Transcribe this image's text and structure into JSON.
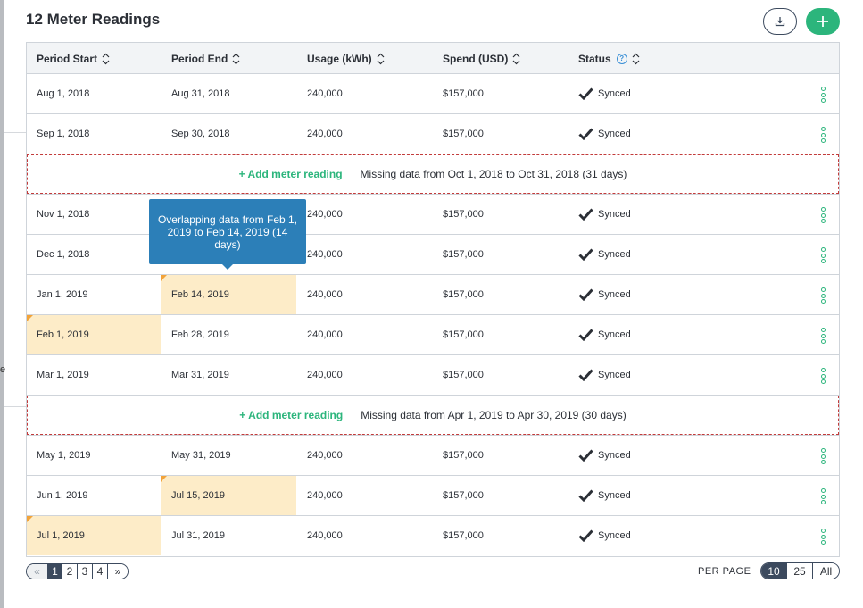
{
  "title": "12 Meter Readings",
  "header": {
    "actions": {
      "download_icon": "download-icon",
      "add_icon": "plus-icon"
    }
  },
  "columns": [
    {
      "label": "Period Start",
      "sortable": true
    },
    {
      "label": "Period End",
      "sortable": true
    },
    {
      "label": "Usage (kWh)",
      "sortable": true
    },
    {
      "label": "Spend (USD)",
      "sortable": true
    },
    {
      "label": "Status",
      "sortable": true,
      "help": "?"
    }
  ],
  "rows": [
    {
      "type": "reading",
      "start": "Aug 1, 2018",
      "end": "Aug 31, 2018",
      "usage": "240,000",
      "spend": "$157,000",
      "status": "Synced",
      "highlight_start": false,
      "highlight_end": false
    },
    {
      "type": "reading",
      "start": "Sep 1, 2018",
      "end": "Sep 30, 2018",
      "usage": "240,000",
      "spend": "$157,000",
      "status": "Synced",
      "highlight_start": false,
      "highlight_end": false
    },
    {
      "type": "missing",
      "link": "+ Add meter reading",
      "message": "Missing data from Oct 1, 2018 to Oct 31, 2018 (31 days)"
    },
    {
      "type": "reading",
      "start": "Nov 1, 2018",
      "end": "",
      "usage": "240,000",
      "spend": "$157,000",
      "status": "Synced",
      "highlight_start": false,
      "highlight_end": false
    },
    {
      "type": "reading",
      "start": "Dec 1, 2018",
      "end": "",
      "usage": "240,000",
      "spend": "$157,000",
      "status": "Synced",
      "highlight_start": false,
      "highlight_end": false
    },
    {
      "type": "reading",
      "start": "Jan 1, 2019",
      "end": "Feb 14, 2019",
      "usage": "240,000",
      "spend": "$157,000",
      "status": "Synced",
      "highlight_start": false,
      "highlight_end": true
    },
    {
      "type": "reading",
      "start": "Feb 1, 2019",
      "end": "Feb 28, 2019",
      "usage": "240,000",
      "spend": "$157,000",
      "status": "Synced",
      "highlight_start": true,
      "highlight_end": false
    },
    {
      "type": "reading",
      "start": "Mar 1, 2019",
      "end": "Mar 31, 2019",
      "usage": "240,000",
      "spend": "$157,000",
      "status": "Synced",
      "highlight_start": false,
      "highlight_end": false
    },
    {
      "type": "missing",
      "link": "+ Add meter reading",
      "message": "Missing data from Apr 1, 2019 to Apr 30, 2019 (30 days)"
    },
    {
      "type": "reading",
      "start": "May 1, 2019",
      "end": "May 31, 2019",
      "usage": "240,000",
      "spend": "$157,000",
      "status": "Synced",
      "highlight_start": false,
      "highlight_end": false
    },
    {
      "type": "reading",
      "start": "Jun 1, 2019",
      "end": "Jul 15, 2019",
      "usage": "240,000",
      "spend": "$157,000",
      "status": "Synced",
      "highlight_start": false,
      "highlight_end": true
    },
    {
      "type": "reading",
      "start": "Jul 1, 2019",
      "end": "Jul 31, 2019",
      "usage": "240,000",
      "spend": "$157,000",
      "status": "Synced",
      "highlight_start": true,
      "highlight_end": false
    }
  ],
  "tooltip": {
    "text": "Overlapping data from Feb 1, 2019 to Feb 14, 2019 (14 days)"
  },
  "pagination": {
    "prev": "«",
    "pages": [
      "1",
      "2",
      "3",
      "4"
    ],
    "active_page": "1",
    "next": "»"
  },
  "per_page": {
    "label": "PER PAGE",
    "options": [
      "10",
      "25",
      "All"
    ],
    "selected": "10"
  },
  "colors": {
    "accent_green": "#2cb57c",
    "highlight": "#fdecc8",
    "tooltip_blue": "#2c7fb8",
    "missing_border": "#c23b3b",
    "navy": "#3c4a5e"
  }
}
